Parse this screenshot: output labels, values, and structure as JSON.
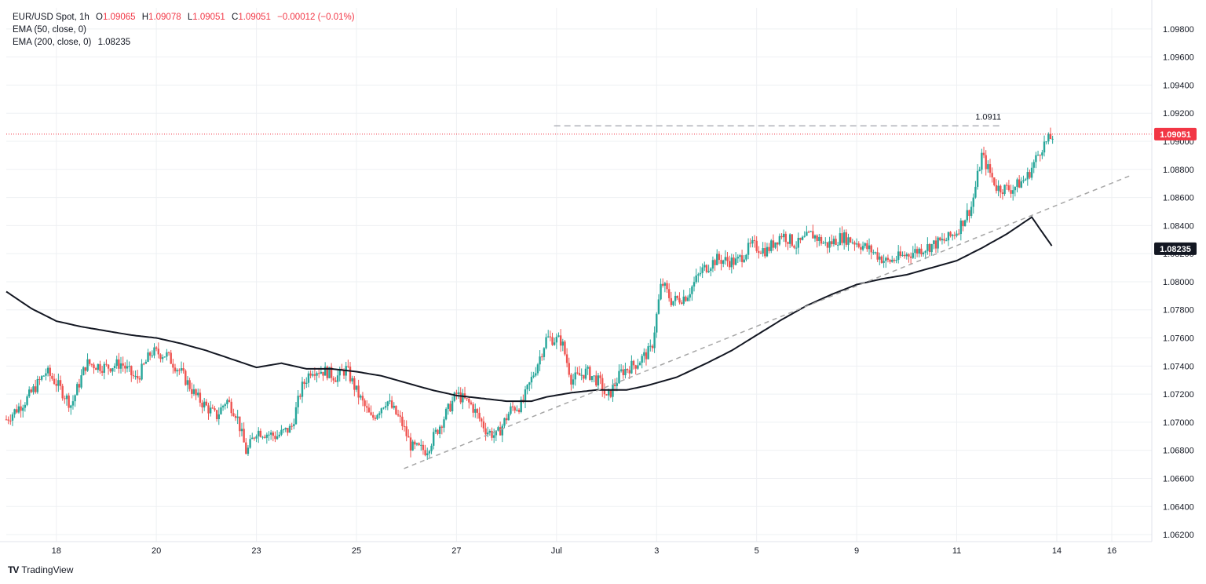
{
  "legend": {
    "symbol": "EUR/USD Spot, 1h",
    "o_label": "O",
    "o_value": "1.09065",
    "h_label": "H",
    "h_value": "1.09078",
    "l_label": "L",
    "l_value": "1.09051",
    "c_label": "C",
    "c_value": "1.09051",
    "change": "−0.00012 (−0.01%)",
    "ema50_label": "EMA (50, close, 0)",
    "ema200_label": "EMA (200, close, 0)",
    "ema200_value": "1.08235"
  },
  "branding": {
    "logo_text": "TV",
    "name": "TradingView"
  },
  "colors": {
    "up": "#26a69a",
    "down": "#ef5350",
    "ema200": "#131722",
    "price_tag": "#f23645",
    "ema_tag": "#131722",
    "trendline": "#a6a6a6",
    "grid": "#eef0f3"
  },
  "chart_data": {
    "type": "candlestick",
    "instrument": "EUR/USD Spot",
    "timeframe": "1h",
    "ylim": [
      1.0615,
      1.0995
    ],
    "y_ticks": [
      "1.06200",
      "1.06400",
      "1.06600",
      "1.06800",
      "1.07000",
      "1.07200",
      "1.07400",
      "1.07600",
      "1.07800",
      "1.08000",
      "1.08200",
      "1.08400",
      "1.08600",
      "1.08800",
      "1.09000",
      "1.09200",
      "1.09400",
      "1.09600",
      "1.09800"
    ],
    "x_ticks": [
      "18",
      "20",
      "23",
      "25",
      "27",
      "Jul",
      "3",
      "5",
      "9",
      "11",
      "14",
      "16"
    ],
    "x_tick_positions": [
      1,
      3,
      5,
      7,
      9,
      11,
      13,
      15,
      17,
      19,
      21,
      22.1
    ],
    "day_range": [
      0,
      22.9
    ],
    "last_price": "1.09051",
    "ema200_last": "1.08235",
    "high_annotation": {
      "label": "1.0911",
      "value": 1.0911,
      "from_day": 10.95,
      "to_day": 19.85
    },
    "trendline": {
      "from": [
        7.95,
        1.0667
      ],
      "to": [
        22.5,
        1.0876
      ]
    },
    "price_anchors": [
      [
        0,
        1.0702
      ],
      [
        0.4,
        1.0716
      ],
      [
        0.8,
        1.0736
      ],
      [
        1.0,
        1.0728
      ],
      [
        1.3,
        1.0712
      ],
      [
        1.6,
        1.0742
      ],
      [
        2.0,
        1.0739
      ],
      [
        2.3,
        1.0742
      ],
      [
        2.6,
        1.073
      ],
      [
        2.9,
        1.075
      ],
      [
        3.2,
        1.0748
      ],
      [
        3.5,
        1.0735
      ],
      [
        3.8,
        1.0718
      ],
      [
        4.2,
        1.0704
      ],
      [
        4.4,
        1.0716
      ],
      [
        4.6,
        1.0706
      ],
      [
        4.8,
        1.0678
      ],
      [
        5.0,
        1.0694
      ],
      [
        5.4,
        1.069
      ],
      [
        5.7,
        1.0696
      ],
      [
        5.9,
        1.0724
      ],
      [
        6.1,
        1.0738
      ],
      [
        6.4,
        1.0736
      ],
      [
        6.6,
        1.0732
      ],
      [
        6.8,
        1.0738
      ],
      [
        7.0,
        1.0722
      ],
      [
        7.3,
        1.0702
      ],
      [
        7.6,
        1.0716
      ],
      [
        7.9,
        1.07
      ],
      [
        8.1,
        1.0682
      ],
      [
        8.4,
        1.068
      ],
      [
        8.7,
        1.07
      ],
      [
        9.0,
        1.072
      ],
      [
        9.3,
        1.0712
      ],
      [
        9.6,
        1.0694
      ],
      [
        9.8,
        1.069
      ],
      [
        10.1,
        1.071
      ],
      [
        10.3,
        1.0712
      ],
      [
        10.6,
        1.074
      ],
      [
        10.8,
        1.076
      ],
      [
        11.1,
        1.0758
      ],
      [
        11.3,
        1.073
      ],
      [
        11.6,
        1.0736
      ],
      [
        11.9,
        1.0727
      ],
      [
        12.0,
        1.0716
      ],
      [
        12.3,
        1.0736
      ],
      [
        12.6,
        1.0742
      ],
      [
        12.9,
        1.0752
      ],
      [
        13.1,
        1.08
      ],
      [
        13.3,
        1.0786
      ],
      [
        13.6,
        1.079
      ],
      [
        13.9,
        1.0808
      ],
      [
        14.2,
        1.0816
      ],
      [
        14.6,
        1.0814
      ],
      [
        14.9,
        1.0826
      ],
      [
        15.2,
        1.0822
      ],
      [
        15.5,
        1.0834
      ],
      [
        15.8,
        1.0826
      ],
      [
        16.1,
        1.0834
      ],
      [
        16.4,
        1.0826
      ],
      [
        16.7,
        1.0832
      ],
      [
        17.0,
        1.0828
      ],
      [
        17.3,
        1.0822
      ],
      [
        17.6,
        1.0814
      ],
      [
        17.9,
        1.0818
      ],
      [
        18.2,
        1.0822
      ],
      [
        18.5,
        1.0826
      ],
      [
        18.8,
        1.083
      ],
      [
        19.0,
        1.0836
      ],
      [
        19.3,
        1.0854
      ],
      [
        19.5,
        1.089
      ],
      [
        19.8,
        1.0867
      ],
      [
        20.1,
        1.0866
      ],
      [
        20.4,
        1.0874
      ],
      [
        20.7,
        1.0896
      ],
      [
        20.95,
        1.0905
      ]
    ],
    "ema200_anchors": [
      [
        0,
        1.0793
      ],
      [
        0.5,
        1.0781
      ],
      [
        1.0,
        1.0772
      ],
      [
        1.5,
        1.0768
      ],
      [
        2.0,
        1.0765
      ],
      [
        2.5,
        1.0762
      ],
      [
        3.0,
        1.076
      ],
      [
        3.5,
        1.0756
      ],
      [
        4.0,
        1.0751
      ],
      [
        4.5,
        1.0745
      ],
      [
        5.0,
        1.0739
      ],
      [
        5.5,
        1.0742
      ],
      [
        6.0,
        1.0738
      ],
      [
        6.5,
        1.0738
      ],
      [
        7.0,
        1.0736
      ],
      [
        7.5,
        1.0733
      ],
      [
        8.0,
        1.0728
      ],
      [
        8.5,
        1.0723
      ],
      [
        9.0,
        1.0719
      ],
      [
        9.5,
        1.0717
      ],
      [
        10.0,
        1.0715
      ],
      [
        10.5,
        1.0715
      ],
      [
        10.8,
        1.0718
      ],
      [
        11.3,
        1.0721
      ],
      [
        11.8,
        1.0723
      ],
      [
        12.4,
        1.0723
      ],
      [
        12.8,
        1.0726
      ],
      [
        13.4,
        1.0732
      ],
      [
        14.0,
        1.0742
      ],
      [
        14.5,
        1.0751
      ],
      [
        15.0,
        1.0762
      ],
      [
        15.5,
        1.0773
      ],
      [
        16.0,
        1.0783
      ],
      [
        16.5,
        1.0791
      ],
      [
        17.0,
        1.0798
      ],
      [
        17.5,
        1.0802
      ],
      [
        18.0,
        1.0805
      ],
      [
        18.5,
        1.081
      ],
      [
        19.0,
        1.0815
      ],
      [
        19.5,
        1.0824
      ],
      [
        20.0,
        1.0834
      ],
      [
        20.5,
        1.0846
      ],
      [
        20.95,
        1.0823
      ]
    ]
  }
}
